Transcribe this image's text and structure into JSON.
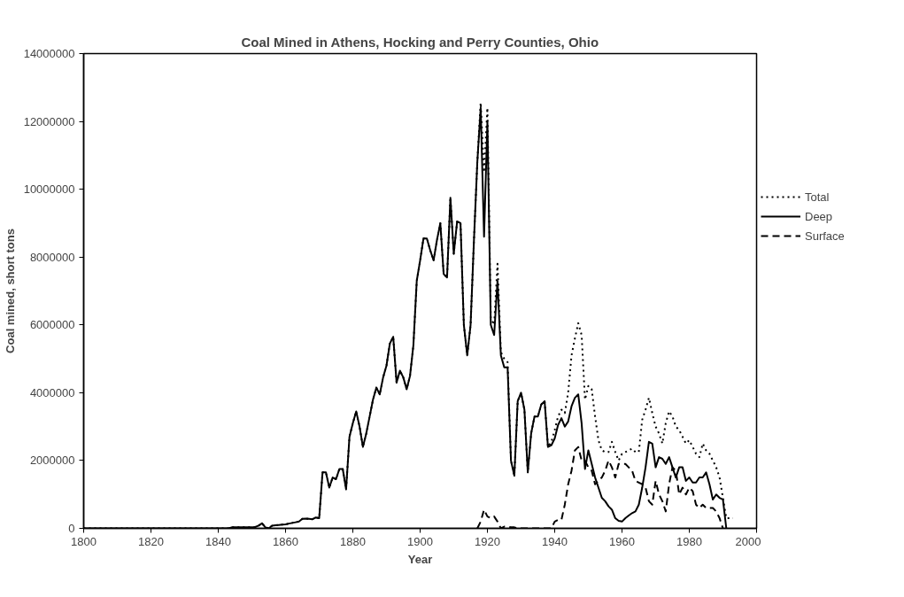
{
  "chart_data": {
    "type": "line",
    "title": "Coal Mined in Athens, Hocking and Perry Counties, Ohio",
    "xlabel": "Year",
    "ylabel": "Coal mined, short tons",
    "xlim": [
      1800,
      2000
    ],
    "xticks": [
      1800,
      1820,
      1840,
      1860,
      1880,
      1900,
      1920,
      1940,
      1960,
      1980,
      2000
    ],
    "ylim": [
      0,
      14000000
    ],
    "yticks": [
      0,
      2000000,
      4000000,
      6000000,
      8000000,
      10000000,
      12000000,
      14000000
    ],
    "grid": false,
    "legend": "right",
    "marker": "none",
    "series": [
      {
        "name": "Total",
        "color": "#000000",
        "line_style": "dotted",
        "x": [
          1800,
          1843,
          1844,
          1845,
          1846,
          1847,
          1848,
          1849,
          1850,
          1851,
          1852,
          1853,
          1854,
          1855,
          1856,
          1857,
          1858,
          1859,
          1860,
          1861,
          1862,
          1863,
          1864,
          1865,
          1866,
          1867,
          1868,
          1869,
          1870,
          1871,
          1872,
          1873,
          1874,
          1875,
          1876,
          1877,
          1878,
          1879,
          1880,
          1881,
          1882,
          1883,
          1884,
          1885,
          1886,
          1887,
          1888,
          1889,
          1890,
          1891,
          1892,
          1893,
          1894,
          1895,
          1896,
          1897,
          1898,
          1899,
          1900,
          1901,
          1902,
          1903,
          1904,
          1905,
          1906,
          1907,
          1908,
          1909,
          1910,
          1911,
          1912,
          1913,
          1914,
          1915,
          1916,
          1917,
          1918,
          1919,
          1920,
          1921,
          1922,
          1923,
          1924,
          1925,
          1926,
          1927,
          1928,
          1929,
          1930,
          1931,
          1932,
          1933,
          1934,
          1935,
          1936,
          1937,
          1938,
          1939,
          1940,
          1941,
          1942,
          1943,
          1944,
          1945,
          1946,
          1947,
          1948,
          1949,
          1950,
          1951,
          1952,
          1953,
          1954,
          1955,
          1956,
          1957,
          1958,
          1959,
          1960,
          1961,
          1962,
          1963,
          1964,
          1965,
          1966,
          1967,
          1968,
          1969,
          1970,
          1971,
          1972,
          1973,
          1974,
          1975,
          1976,
          1977,
          1978,
          1979,
          1980,
          1981,
          1982,
          1983,
          1984,
          1985,
          1986,
          1987,
          1988,
          1989,
          1990,
          1991,
          1992,
          1993
        ],
        "values": [
          0,
          0,
          30000,
          30000,
          30000,
          30000,
          30000,
          30000,
          30000,
          40000,
          80000,
          150000,
          30000,
          0,
          80000,
          90000,
          100000,
          110000,
          120000,
          140000,
          160000,
          180000,
          200000,
          280000,
          290000,
          280000,
          270000,
          320000,
          300000,
          1650000,
          1650000,
          1200000,
          1500000,
          1450000,
          1750000,
          1750000,
          1150000,
          2700000,
          3100000,
          3450000,
          3000000,
          2400000,
          2800000,
          3300000,
          3800000,
          4150000,
          3950000,
          4450000,
          4800000,
          5450000,
          5650000,
          4300000,
          4650000,
          4450000,
          4100000,
          4500000,
          5400000,
          7300000,
          7900000,
          8550000,
          8550000,
          8200000,
          7900000,
          8500000,
          9000000,
          7500000,
          7400000,
          9750000,
          8100000,
          9050000,
          9000000,
          6000000,
          5100000,
          6000000,
          8500000,
          10800000,
          12550000,
          10500000,
          12400000,
          6200000,
          6000000,
          7800000,
          5200000,
          5000000,
          4900000,
          2000000,
          1550000,
          3750000,
          4000000,
          3500000,
          1650000,
          2800000,
          3300000,
          3300000,
          3650000,
          3750000,
          2400000,
          2550000,
          2900000,
          3300000,
          3500000,
          3400000,
          4000000,
          5100000,
          5600000,
          6050000,
          5700000,
          3800000,
          4200000,
          4100000,
          3300000,
          2600000,
          2300000,
          2250000,
          2250000,
          2550000,
          2250000,
          2000000,
          2200000,
          2250000,
          2300000,
          2350000,
          2250000,
          2250000,
          3200000,
          3500000,
          3850000,
          3400000,
          3000000,
          2800000,
          2500000,
          3100000,
          3450000,
          3300000,
          3000000,
          2900000,
          2700000,
          2500000,
          2600000,
          2400000,
          2200000,
          2100000,
          2500000,
          2300000,
          2200000,
          2000000,
          1800000,
          1500000,
          900000,
          300000,
          300000,
          300000
        ]
      },
      {
        "name": "Deep",
        "color": "#000000",
        "line_style": "solid",
        "x": [
          1800,
          1843,
          1844,
          1845,
          1846,
          1847,
          1848,
          1849,
          1850,
          1851,
          1852,
          1853,
          1854,
          1855,
          1856,
          1857,
          1858,
          1859,
          1860,
          1861,
          1862,
          1863,
          1864,
          1865,
          1866,
          1867,
          1868,
          1869,
          1870,
          1871,
          1872,
          1873,
          1874,
          1875,
          1876,
          1877,
          1878,
          1879,
          1880,
          1881,
          1882,
          1883,
          1884,
          1885,
          1886,
          1887,
          1888,
          1889,
          1890,
          1891,
          1892,
          1893,
          1894,
          1895,
          1896,
          1897,
          1898,
          1899,
          1900,
          1901,
          1902,
          1903,
          1904,
          1905,
          1906,
          1907,
          1908,
          1909,
          1910,
          1911,
          1912,
          1913,
          1914,
          1915,
          1916,
          1917,
          1918,
          1919,
          1920,
          1921,
          1922,
          1923,
          1924,
          1925,
          1926,
          1927,
          1928,
          1929,
          1930,
          1931,
          1932,
          1933,
          1934,
          1935,
          1936,
          1937,
          1938,
          1939,
          1940,
          1941,
          1942,
          1943,
          1944,
          1945,
          1946,
          1947,
          1948,
          1949,
          1950,
          1951,
          1952,
          1953,
          1954,
          1955,
          1956,
          1957,
          1958,
          1959,
          1960,
          1961,
          1962,
          1963,
          1964,
          1965,
          1966,
          1967,
          1968,
          1969,
          1970,
          1971,
          1972,
          1973,
          1974,
          1975,
          1976,
          1977,
          1978,
          1979,
          1980,
          1981,
          1982,
          1983,
          1984,
          1985,
          1986,
          1987,
          1988,
          1989,
          1990,
          1991
        ],
        "values": [
          0,
          0,
          30000,
          30000,
          30000,
          30000,
          30000,
          30000,
          30000,
          40000,
          80000,
          150000,
          30000,
          0,
          80000,
          90000,
          100000,
          110000,
          120000,
          140000,
          160000,
          180000,
          200000,
          280000,
          290000,
          280000,
          270000,
          320000,
          300000,
          1650000,
          1650000,
          1200000,
          1500000,
          1450000,
          1750000,
          1750000,
          1150000,
          2700000,
          3100000,
          3450000,
          3000000,
          2400000,
          2800000,
          3300000,
          3800000,
          4150000,
          3950000,
          4450000,
          4800000,
          5450000,
          5650000,
          4300000,
          4650000,
          4450000,
          4100000,
          4500000,
          5400000,
          7300000,
          7900000,
          8550000,
          8550000,
          8200000,
          7900000,
          8500000,
          9000000,
          7500000,
          7400000,
          9750000,
          8100000,
          9050000,
          9000000,
          6000000,
          5100000,
          6000000,
          8500000,
          10800000,
          12400000,
          8600000,
          12000000,
          6000000,
          5700000,
          7300000,
          5100000,
          4750000,
          4750000,
          2000000,
          1550000,
          3750000,
          4000000,
          3500000,
          1650000,
          2800000,
          3300000,
          3300000,
          3650000,
          3750000,
          2400000,
          2450000,
          2650000,
          3050000,
          3250000,
          3000000,
          3150000,
          3600000,
          3850000,
          3950000,
          3100000,
          1750000,
          2300000,
          1900000,
          1500000,
          1200000,
          900000,
          800000,
          650000,
          550000,
          300000,
          220000,
          200000,
          300000,
          380000,
          450000,
          500000,
          700000,
          1200000,
          1800000,
          2550000,
          2500000,
          1800000,
          2100000,
          2050000,
          1900000,
          2100000,
          1800000,
          1500000,
          1800000,
          1800000,
          1400000,
          1500000,
          1350000,
          1350000,
          1500000,
          1500000,
          1650000,
          1300000,
          850000,
          1000000,
          900000,
          850000,
          0
        ]
      },
      {
        "name": "Surface",
        "color": "#000000",
        "line_style": "dashed",
        "x": [
          1917,
          1918,
          1919,
          1920,
          1921,
          1922,
          1923,
          1924,
          1925,
          1926,
          1927,
          1928,
          1929,
          1930,
          1931,
          1932,
          1933,
          1934,
          1935,
          1936,
          1937,
          1938,
          1939,
          1940,
          1941,
          1942,
          1943,
          1944,
          1945,
          1946,
          1947,
          1948,
          1949,
          1950,
          1951,
          1952,
          1953,
          1954,
          1955,
          1956,
          1957,
          1958,
          1959,
          1960,
          1961,
          1962,
          1963,
          1964,
          1965,
          1966,
          1967,
          1968,
          1969,
          1970,
          1971,
          1972,
          1973,
          1974,
          1975,
          1976,
          1977,
          1978,
          1979,
          1980,
          1981,
          1982,
          1983,
          1984,
          1985,
          1986,
          1987,
          1988,
          1989,
          1990
        ],
        "values": [
          0,
          200000,
          550000,
          350000,
          300000,
          350000,
          200000,
          0,
          50000,
          50000,
          30000,
          30000,
          0,
          0,
          0,
          0,
          0,
          0,
          0,
          0,
          0,
          0,
          0,
          200000,
          250000,
          250000,
          700000,
          1300000,
          1700000,
          2300000,
          2400000,
          2000000,
          2000000,
          1800000,
          1700000,
          1300000,
          1400000,
          1500000,
          1700000,
          2000000,
          1800000,
          1500000,
          1900000,
          1900000,
          1900000,
          1800000,
          1700000,
          1400000,
          1350000,
          1300000,
          1200000,
          800000,
          700000,
          1400000,
          1000000,
          800000,
          500000,
          1300000,
          1800000,
          1700000,
          1000000,
          1200000,
          1000000,
          1200000,
          1100000,
          700000,
          600000,
          700000,
          600000,
          600000,
          600000,
          500000,
          300000,
          0
        ]
      }
    ]
  }
}
